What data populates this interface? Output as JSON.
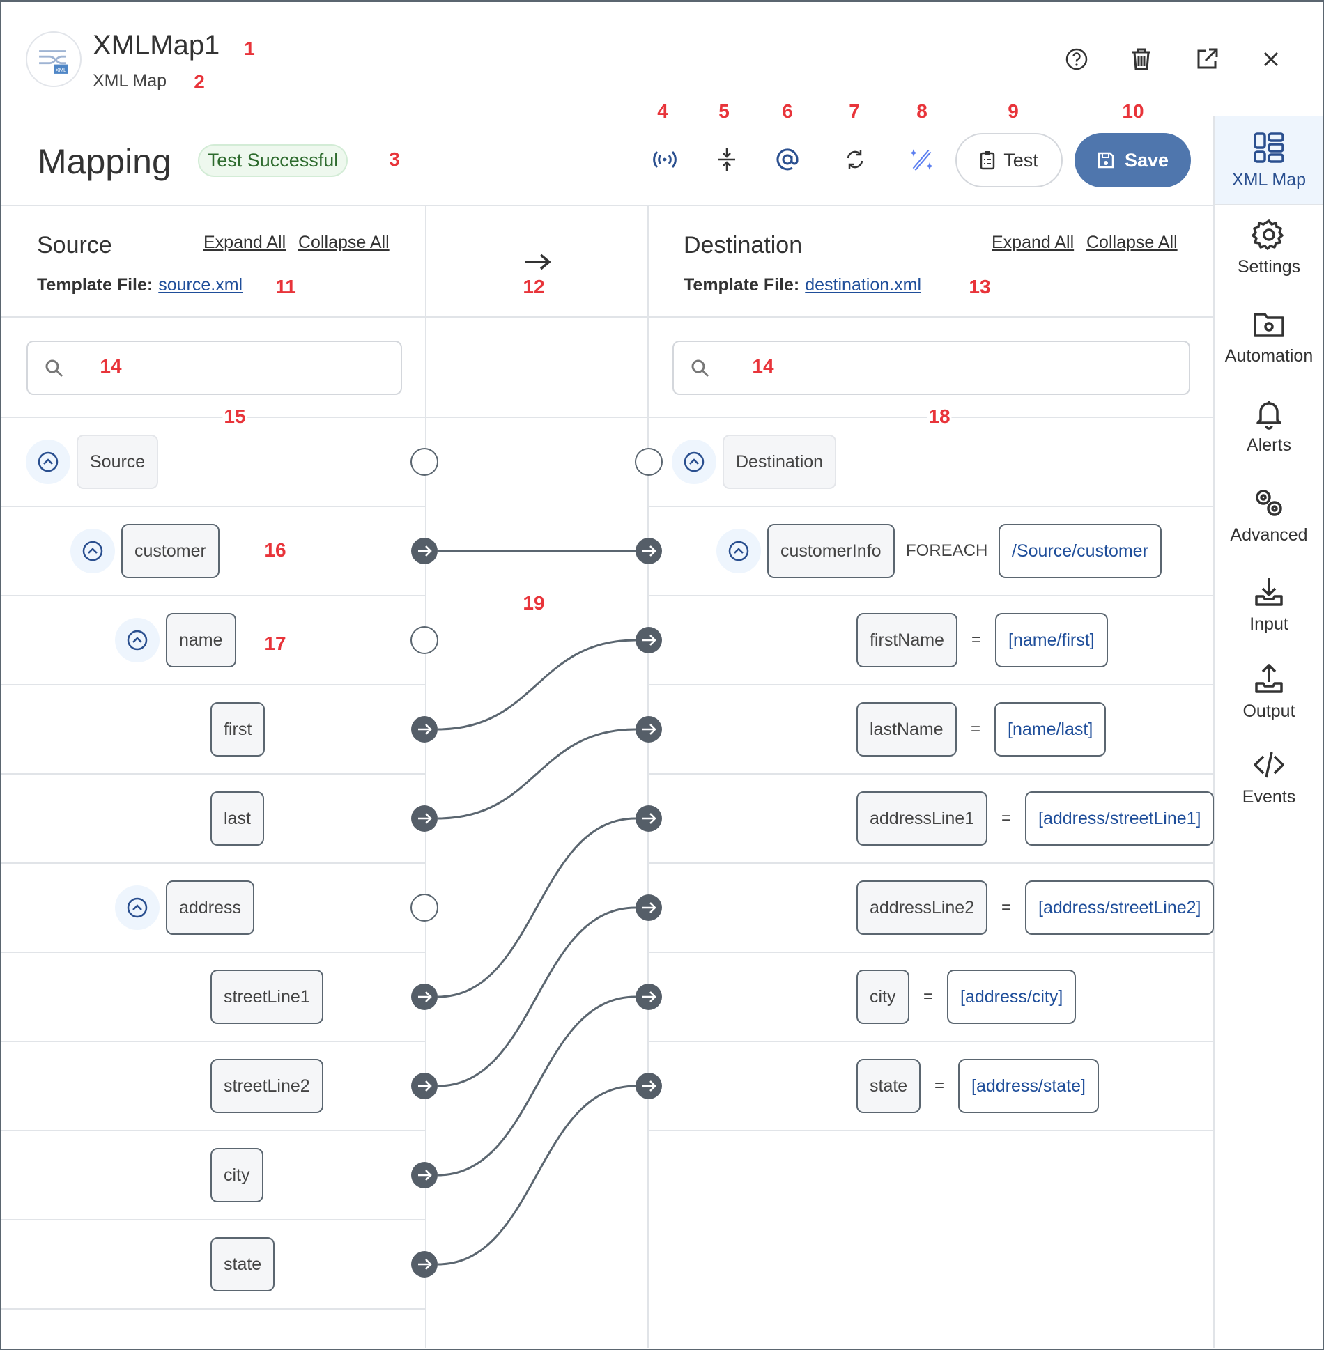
{
  "header": {
    "title": "XMLMap1",
    "subtitle": "XML Map",
    "logo_text": "XML",
    "icons": [
      "help-icon",
      "trash-icon",
      "external-link-icon",
      "close-icon"
    ]
  },
  "mapping": {
    "title": "Mapping",
    "status_badge": "Test Successful",
    "toolbar_icons": [
      "broadcast-icon",
      "collapse-icon",
      "at-icon",
      "refresh-icon",
      "magic-wand-icon"
    ],
    "test_label": "Test",
    "save_label": "Save"
  },
  "colors": {
    "accent": "#4f76ad",
    "link": "#1f4e9a",
    "success_bg": "#eef8ee",
    "success_text": "#2e6b2e",
    "connector": "#555e68"
  },
  "source": {
    "title": "Source",
    "expand_all": "Expand All",
    "collapse_all": "Collapse All",
    "template_label": "Template File:",
    "template_file": "source.xml",
    "search_placeholder": "",
    "rows": [
      {
        "label": "Source",
        "depth": 0,
        "collapsible": true,
        "connector": "empty"
      },
      {
        "label": "customer",
        "depth": 1,
        "collapsible": true,
        "connector": "filled"
      },
      {
        "label": "name",
        "depth": 2,
        "collapsible": true,
        "connector": "empty"
      },
      {
        "label": "first",
        "depth": 3,
        "collapsible": false,
        "connector": "filled"
      },
      {
        "label": "last",
        "depth": 3,
        "collapsible": false,
        "connector": "filled"
      },
      {
        "label": "address",
        "depth": 2,
        "collapsible": true,
        "connector": "empty"
      },
      {
        "label": "streetLine1",
        "depth": 3,
        "collapsible": false,
        "connector": "filled"
      },
      {
        "label": "streetLine2",
        "depth": 3,
        "collapsible": false,
        "connector": "filled"
      },
      {
        "label": "city",
        "depth": 3,
        "collapsible": false,
        "connector": "filled"
      },
      {
        "label": "state",
        "depth": 3,
        "collapsible": false,
        "connector": "filled"
      }
    ]
  },
  "destination": {
    "title": "Destination",
    "expand_all": "Expand All",
    "collapse_all": "Collapse All",
    "template_label": "Template File:",
    "template_file": "destination.xml",
    "search_placeholder": "",
    "rows": [
      {
        "label": "Destination",
        "depth": 0,
        "collapsible": true,
        "connector": "empty"
      },
      {
        "label": "customerInfo",
        "depth": 1,
        "collapsible": true,
        "connector": "filled",
        "operator": "FOREACH",
        "expression": "/Source/customer"
      },
      {
        "label": "firstName",
        "depth": 3,
        "collapsible": false,
        "connector": "filled",
        "operator": "=",
        "expression": "[name/first]"
      },
      {
        "label": "lastName",
        "depth": 3,
        "collapsible": false,
        "connector": "filled",
        "operator": "=",
        "expression": "[name/last]"
      },
      {
        "label": "addressLine1",
        "depth": 3,
        "collapsible": false,
        "connector": "filled",
        "operator": "=",
        "expression": "[address/streetLine1]"
      },
      {
        "label": "addressLine2",
        "depth": 3,
        "collapsible": false,
        "connector": "filled",
        "operator": "=",
        "expression": "[address/streetLine2]"
      },
      {
        "label": "city",
        "depth": 3,
        "collapsible": false,
        "connector": "filled",
        "operator": "=",
        "expression": "[address/city]"
      },
      {
        "label": "state",
        "depth": 3,
        "collapsible": false,
        "connector": "filled",
        "operator": "=",
        "expression": "[address/state]"
      }
    ]
  },
  "connections": [
    {
      "from": "customer",
      "to": "customerInfo"
    },
    {
      "from": "first",
      "to": "firstName"
    },
    {
      "from": "last",
      "to": "lastName"
    },
    {
      "from": "streetLine1",
      "to": "addressLine1"
    },
    {
      "from": "streetLine2",
      "to": "addressLine2"
    },
    {
      "from": "city",
      "to": "city"
    },
    {
      "from": "state",
      "to": "state"
    }
  ],
  "sidebar": {
    "active": "XML Map",
    "items": [
      {
        "label": "XML Map",
        "icon": "grid-icon"
      },
      {
        "label": "Settings",
        "icon": "gear-icon"
      },
      {
        "label": "Automation",
        "icon": "folder-gear-icon"
      },
      {
        "label": "Alerts",
        "icon": "bell-icon"
      },
      {
        "label": "Advanced",
        "icon": "gears-icon"
      },
      {
        "label": "Input",
        "icon": "download-icon"
      },
      {
        "label": "Output",
        "icon": "upload-icon"
      },
      {
        "label": "Events",
        "icon": "code-icon"
      }
    ]
  },
  "annotations": [
    "1",
    "2",
    "3",
    "4",
    "5",
    "6",
    "7",
    "8",
    "9",
    "10",
    "11",
    "12",
    "13",
    "14",
    "14",
    "15",
    "16",
    "17",
    "18",
    "19"
  ]
}
